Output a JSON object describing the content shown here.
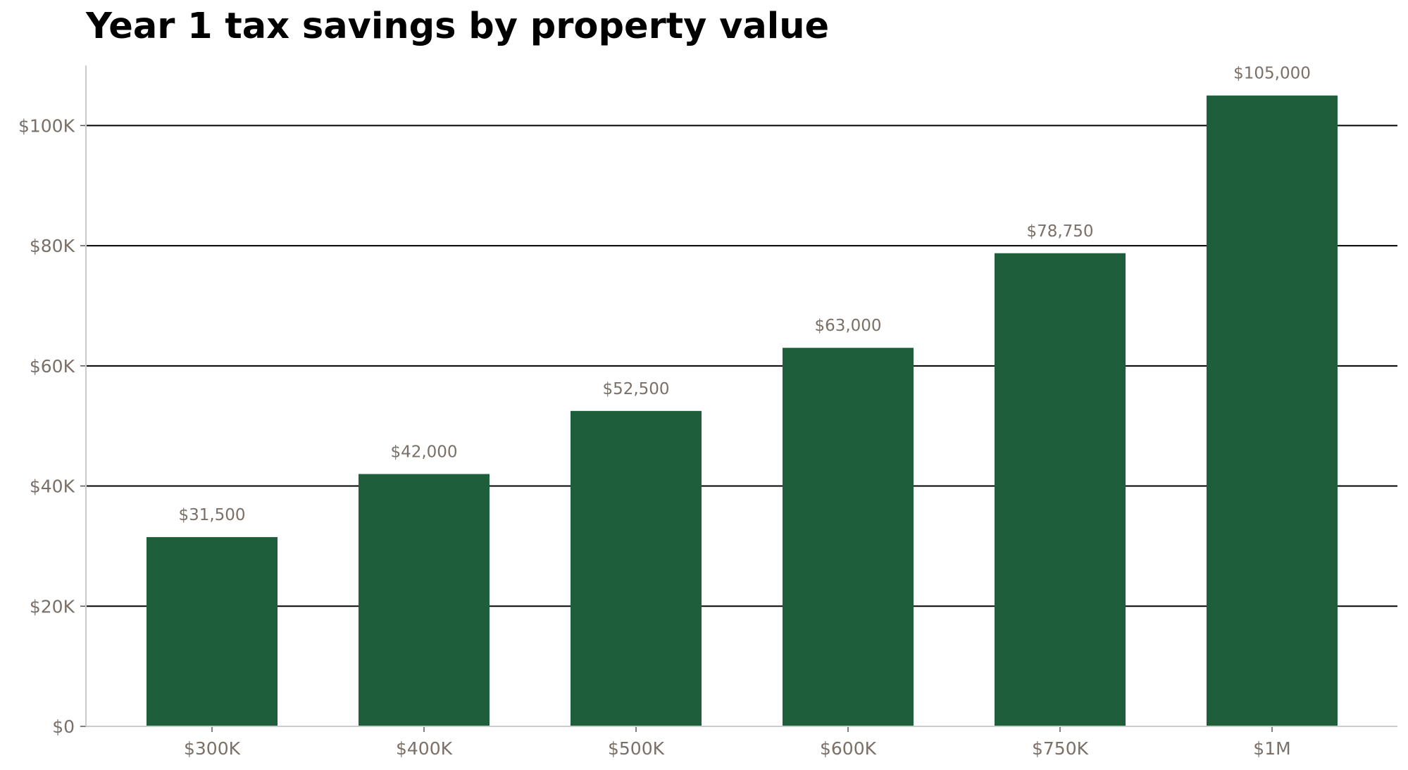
{
  "chart_data": {
    "type": "bar",
    "title": "Year 1 tax savings by property value",
    "xlabel": "",
    "ylabel": "",
    "categories": [
      "$300K",
      "$400K",
      "$500K",
      "$600K",
      "$750K",
      "$1M"
    ],
    "values": [
      31500,
      42000,
      52500,
      63000,
      78750,
      105000
    ],
    "data_labels": [
      "$31,500",
      "$42,000",
      "$52,500",
      "$63,000",
      "$78,750",
      "$105,000"
    ],
    "ylim": [
      0,
      110000
    ],
    "yticks": [
      0,
      20000,
      40000,
      60000,
      80000,
      100000
    ],
    "ytick_labels": [
      "$0",
      "$20K",
      "$40K",
      "$60K",
      "$80K",
      "$100K"
    ],
    "grid": true,
    "legend": "none",
    "colors": {
      "bar": "#1e5e3b",
      "gridline": "#000000",
      "axis_line": "#cccccc",
      "tick_text": "#7a7068",
      "label_text": "#7a7068",
      "title": "#000000"
    }
  }
}
